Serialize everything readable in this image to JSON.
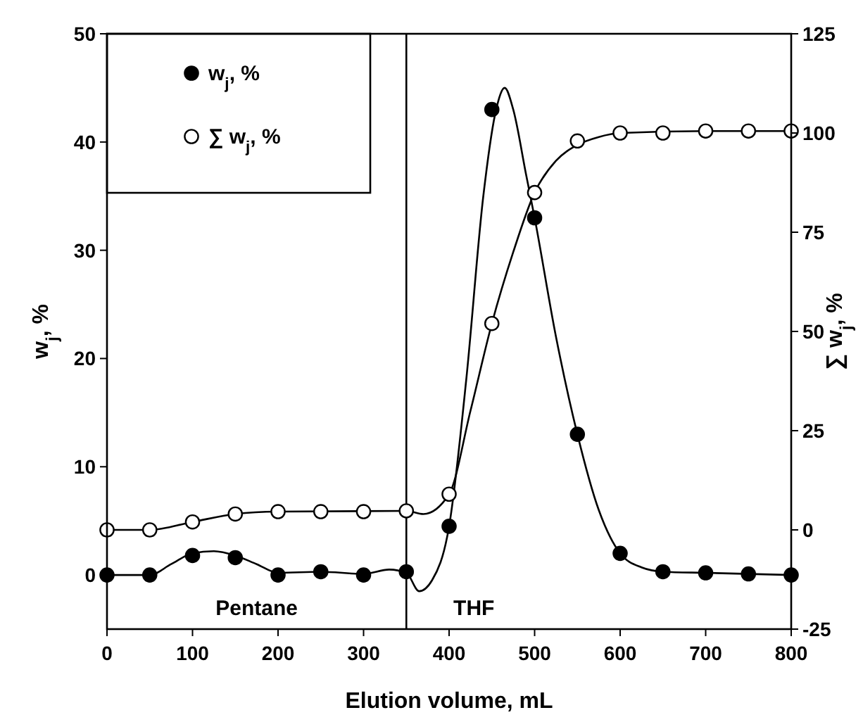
{
  "chart_data": {
    "type": "scatter",
    "xlabel": "Elution volume, mL",
    "ylabel": "w$_{j}$, %",
    "y2label": "∑ w$_{j}$, %",
    "xlim": [
      0,
      800
    ],
    "xticks": [
      0,
      100,
      200,
      300,
      400,
      500,
      600,
      700,
      800
    ],
    "ylim": [
      -5,
      50
    ],
    "yticks": [
      0,
      10,
      20,
      30,
      40,
      50
    ],
    "y2lim": [
      -25,
      125
    ],
    "y2ticks": [
      -25,
      0,
      25,
      50,
      75,
      100,
      125
    ],
    "legend": "top left",
    "grid": false,
    "marker": "circle",
    "ref_lines": [
      {
        "axis": "x",
        "value": 350,
        "color": "#000000"
      }
    ],
    "annotations": [
      "Pentane",
      "THF"
    ],
    "series": [
      {
        "type": "line",
        "color": "#000000",
        "marker": "none",
        "x": [
          0,
          50,
          75,
          100,
          125,
          150,
          175,
          200,
          250,
          300,
          330,
          350,
          365,
          380,
          400,
          420,
          440,
          455,
          465,
          475,
          490,
          500,
          525,
          550,
          575,
          600,
          625,
          650,
          700,
          800
        ],
        "values": [
          0,
          0,
          1,
          2,
          2.2,
          1.8,
          1,
          0.2,
          0.3,
          0.1,
          0.5,
          0.2,
          -1.5,
          -0.5,
          4.5,
          18,
          35,
          43,
          45,
          43,
          37,
          33,
          22,
          13,
          6,
          2,
          0.7,
          0.3,
          0.2,
          0
        ]
      },
      {
        "type": "line",
        "axis": "y2",
        "color": "#000000",
        "marker": "none",
        "x": [
          0,
          50,
          100,
          150,
          200,
          350,
          370,
          400,
          425,
          450,
          475,
          500,
          525,
          550,
          575,
          600,
          700,
          800
        ],
        "values": [
          0,
          0,
          2,
          4,
          4.6,
          4.8,
          4,
          9,
          30,
          52,
          70,
          85,
          93,
          97,
          99,
          100,
          100.5,
          100.5
        ]
      },
      {
        "name": "w$_{j}$, %",
        "color": "#000000",
        "x": [
          0,
          50,
          100,
          150,
          200,
          250,
          300,
          350,
          400,
          450,
          500,
          550,
          600,
          650,
          700,
          750,
          800
        ],
        "values": [
          0,
          0,
          1.8,
          1.6,
          0,
          0.3,
          0,
          0.3,
          4.5,
          43,
          33,
          13,
          2,
          0.3,
          0.2,
          0.1,
          0
        ]
      },
      {
        "axis": "y2",
        "name": "∑ w$_{j}$, %",
        "color": "#ffffff",
        "x": [
          0,
          50,
          100,
          150,
          200,
          250,
          300,
          350,
          400,
          450,
          500,
          550,
          600,
          650,
          700,
          750,
          800
        ],
        "values": [
          0,
          0,
          2,
          4,
          4.6,
          4.6,
          4.6,
          4.8,
          9,
          52,
          85,
          98,
          100,
          100,
          100.5,
          100.5,
          100.5
        ]
      }
    ]
  }
}
